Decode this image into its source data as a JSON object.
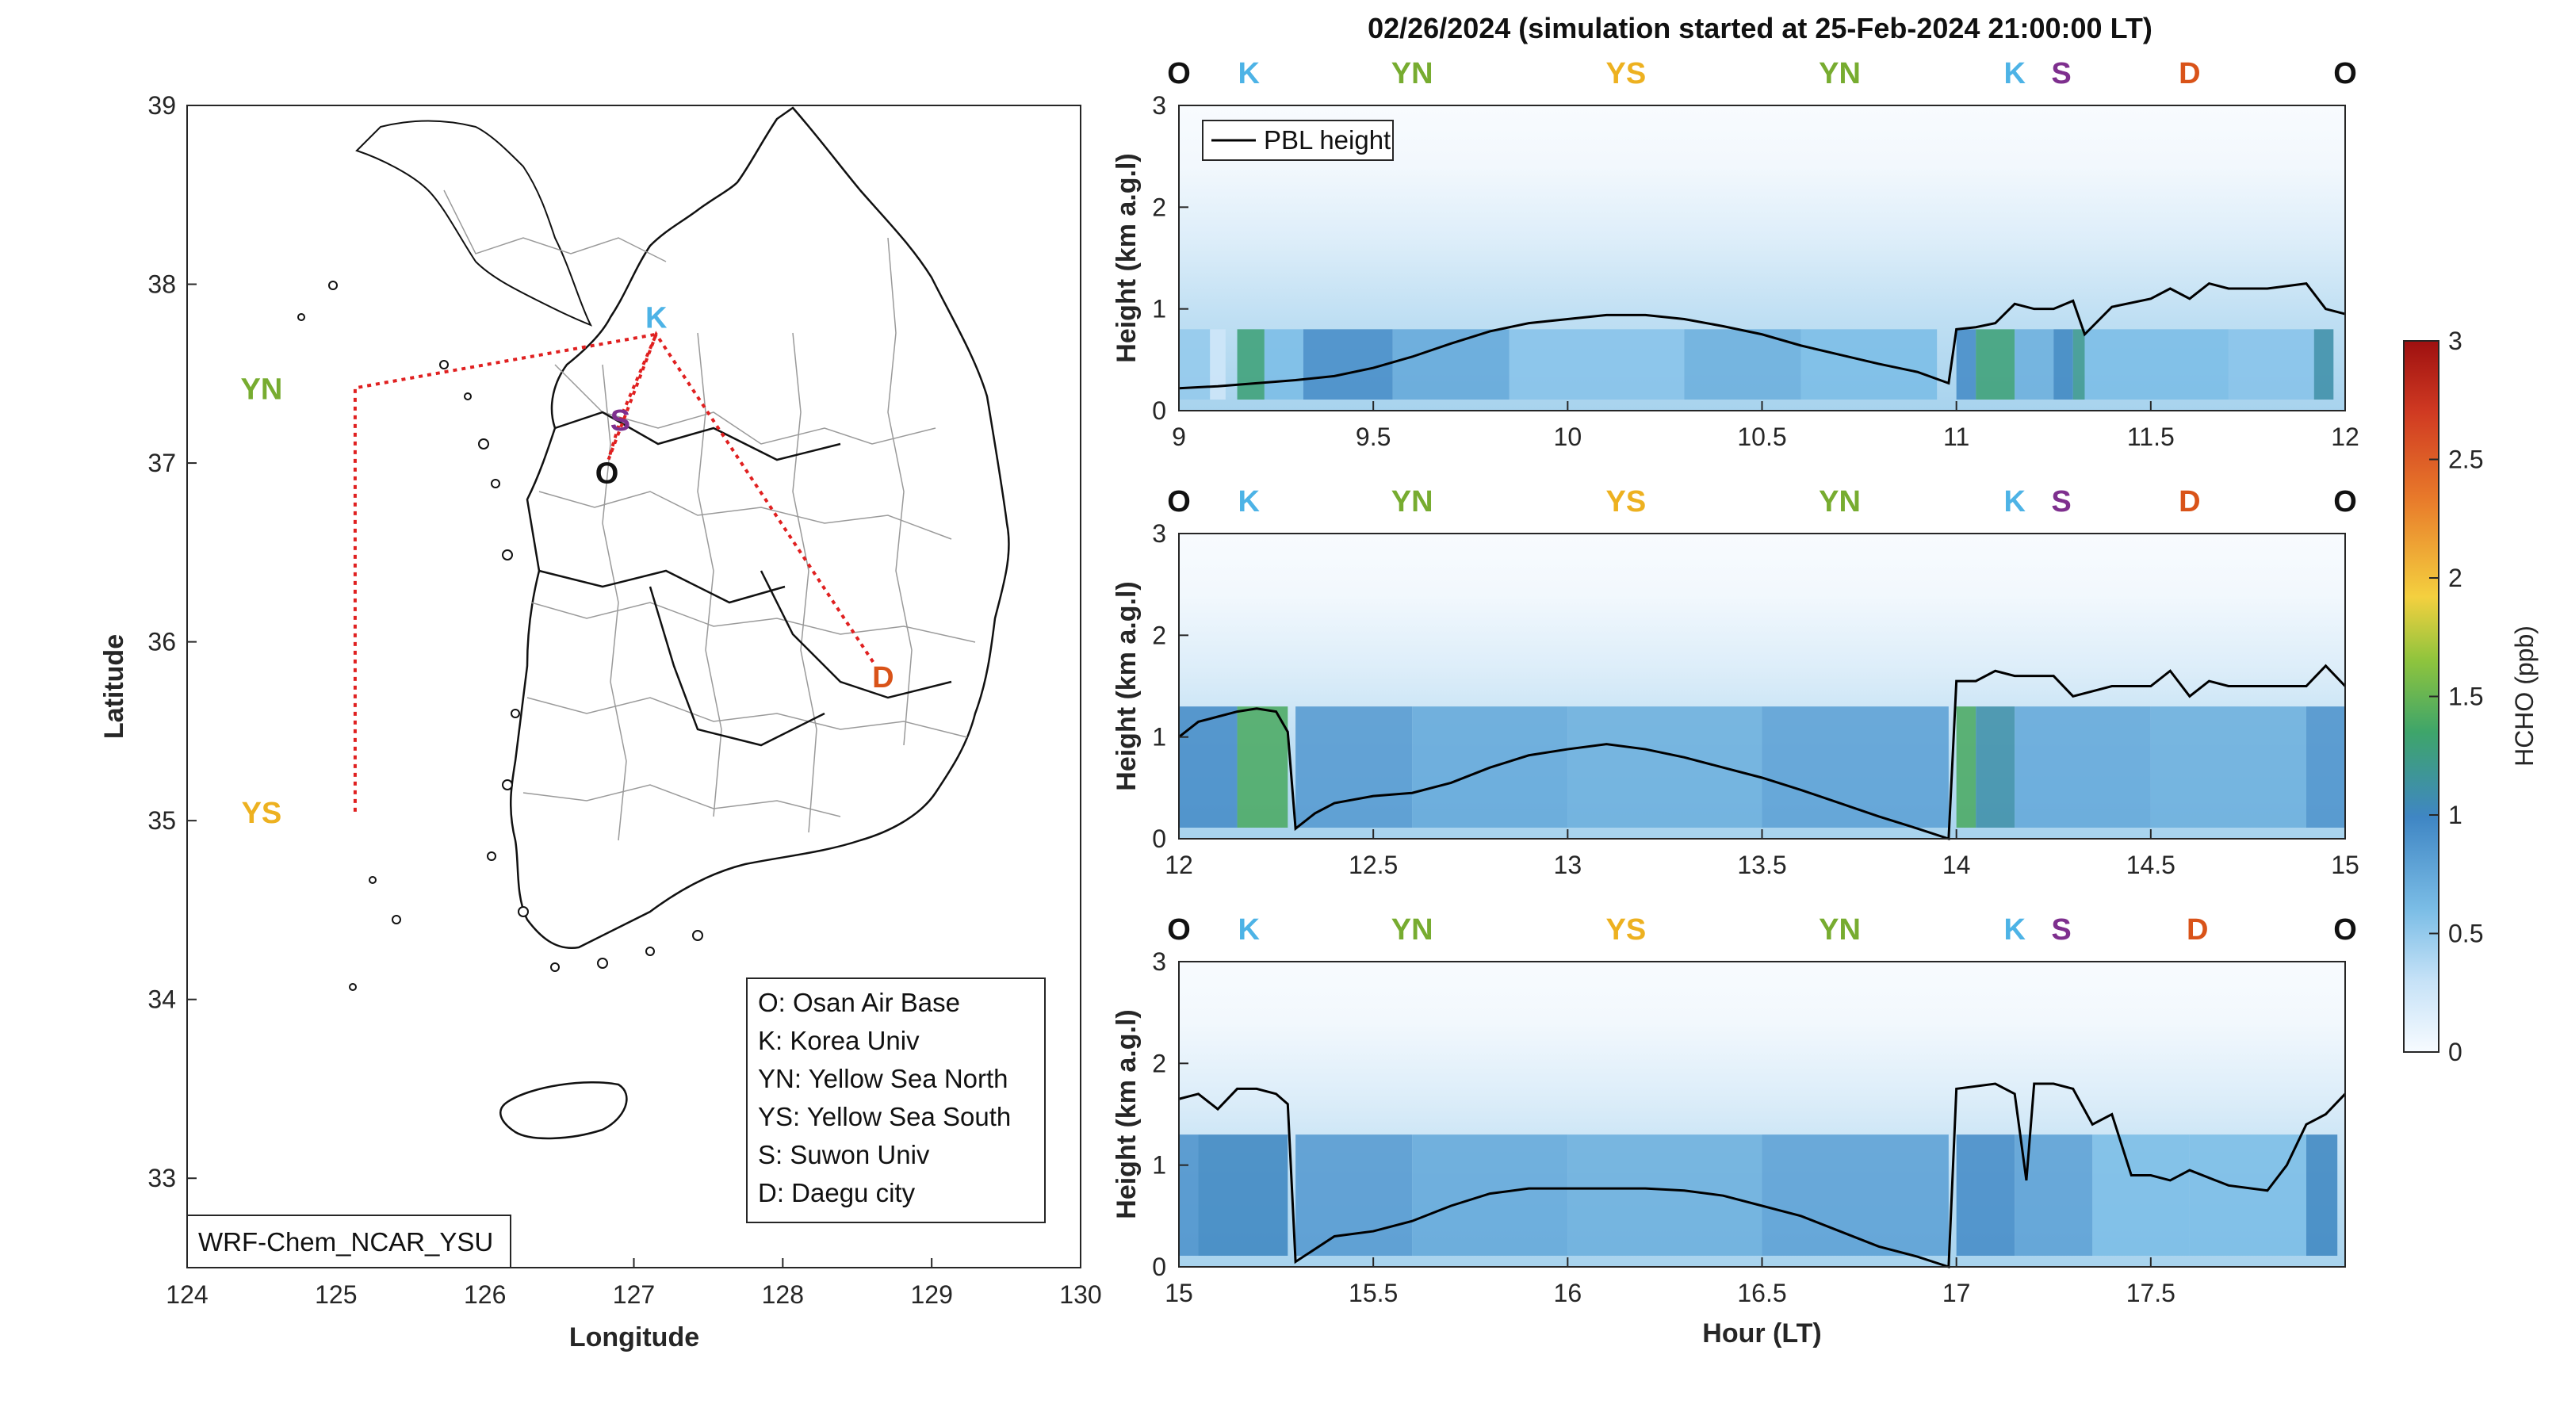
{
  "title": "02/26/2024 (simulation started at 25-Feb-2024 21:00:00 LT)",
  "colors": {
    "O": "#111111",
    "K": "#4db3e6",
    "YN": "#77ac30",
    "YS": "#edb120",
    "S": "#7e2f8e",
    "D": "#d95319",
    "route": "#e02020",
    "pbl": "#000000"
  },
  "map": {
    "xlabel": "Longitude",
    "ylabel": "Latitude",
    "xticks": [
      "124",
      "125",
      "126",
      "127",
      "128",
      "129",
      "130"
    ],
    "yticks": [
      "33",
      "34",
      "35",
      "36",
      "37",
      "38",
      "39"
    ],
    "xlim": [
      124,
      130
    ],
    "ylim": [
      32.5,
      39
    ],
    "model_label": "WRF-Chem_NCAR_YSU",
    "sites": [
      {
        "key": "O",
        "label": "O",
        "lon": 126.83,
        "lat": 37.02
      },
      {
        "key": "K",
        "label": "K",
        "lon": 127.15,
        "lat": 37.72
      },
      {
        "key": "S",
        "label": "S",
        "lon": 126.92,
        "lat": 37.27
      },
      {
        "key": "YN",
        "label": "YN",
        "lon": 124.5,
        "lat": 37.42
      },
      {
        "key": "YS",
        "label": "YS",
        "lon": 124.5,
        "lat": 35.05
      },
      {
        "key": "D",
        "label": "D",
        "lon": 128.62,
        "lat": 35.87
      }
    ],
    "legend": [
      "O: Osan Air Base",
      "K: Korea Univ",
      "YN: Yellow Sea North",
      "YS: Yellow Sea South",
      "S: Suwon Univ",
      "D: Daegu city"
    ]
  },
  "chart_data": [
    {
      "type": "heatmap",
      "xlim": [
        9,
        12
      ],
      "ylim": [
        0,
        3
      ],
      "xticks": [
        "9",
        "9.5",
        "10",
        "10.5",
        "11",
        "11.5",
        "12"
      ],
      "yticks": [
        "0",
        "1",
        "2",
        "3"
      ],
      "ylabel": "Height (km a.g.l)",
      "legend": "PBL height",
      "site_markers": [
        {
          "key": "O",
          "x": 9.0
        },
        {
          "key": "K",
          "x": 9.18
        },
        {
          "key": "YN",
          "x": 9.6
        },
        {
          "key": "YS",
          "x": 10.15
        },
        {
          "key": "YN",
          "x": 10.7
        },
        {
          "key": "K",
          "x": 11.15
        },
        {
          "key": "S",
          "x": 11.27
        },
        {
          "key": "D",
          "x": 11.6
        },
        {
          "key": "O",
          "x": 12.0
        }
      ],
      "pbl": {
        "x": [
          9.0,
          9.1,
          9.2,
          9.3,
          9.4,
          9.5,
          9.6,
          9.7,
          9.8,
          9.9,
          10.0,
          10.1,
          10.2,
          10.3,
          10.4,
          10.5,
          10.6,
          10.7,
          10.8,
          10.9,
          10.98,
          11.0,
          11.05,
          11.1,
          11.15,
          11.2,
          11.25,
          11.3,
          11.33,
          11.4,
          11.5,
          11.55,
          11.6,
          11.65,
          11.7,
          11.8,
          11.9,
          11.95,
          12.0
        ],
        "y": [
          0.22,
          0.24,
          0.27,
          0.3,
          0.34,
          0.42,
          0.53,
          0.66,
          0.78,
          0.86,
          0.9,
          0.94,
          0.94,
          0.9,
          0.83,
          0.75,
          0.64,
          0.55,
          0.46,
          0.38,
          0.27,
          0.8,
          0.82,
          0.86,
          1.05,
          1.0,
          1.0,
          1.08,
          0.75,
          1.02,
          1.1,
          1.2,
          1.1,
          1.25,
          1.2,
          1.2,
          1.25,
          1.0,
          0.95
        ]
      },
      "bands": [
        {
          "x": [
            9.0,
            9.08
          ],
          "v": 0.5
        },
        {
          "x": [
            9.08,
            9.12
          ],
          "v": 0.25
        },
        {
          "x": [
            9.15,
            9.22
          ],
          "v": 1.3
        },
        {
          "x": [
            9.22,
            9.32
          ],
          "v": 0.6
        },
        {
          "x": [
            9.32,
            9.55
          ],
          "v": 0.95
        },
        {
          "x": [
            9.55,
            9.85
          ],
          "v": 0.75
        },
        {
          "x": [
            9.85,
            10.3
          ],
          "v": 0.55
        },
        {
          "x": [
            10.3,
            10.6
          ],
          "v": 0.7
        },
        {
          "x": [
            10.6,
            10.95
          ],
          "v": 0.6
        },
        {
          "x": [
            11.0,
            11.05
          ],
          "v": 0.95
        },
        {
          "x": [
            11.05,
            11.15
          ],
          "v": 1.3
        },
        {
          "x": [
            11.15,
            11.25
          ],
          "v": 0.7
        },
        {
          "x": [
            11.25,
            11.3
          ],
          "v": 1.0
        },
        {
          "x": [
            11.3,
            11.33
          ],
          "v": 1.2
        },
        {
          "x": [
            11.33,
            11.7
          ],
          "v": 0.6
        },
        {
          "x": [
            11.7,
            11.92
          ],
          "v": 0.55
        },
        {
          "x": [
            11.92,
            11.97
          ],
          "v": 1.1
        }
      ]
    },
    {
      "type": "heatmap",
      "xlim": [
        12,
        15
      ],
      "ylim": [
        0,
        3
      ],
      "xticks": [
        "12",
        "12.5",
        "13",
        "13.5",
        "14",
        "14.5",
        "15"
      ],
      "yticks": [
        "0",
        "1",
        "2",
        "3"
      ],
      "ylabel": "Height (km a.g.l)",
      "site_markers": [
        {
          "key": "O",
          "x": 12.0
        },
        {
          "key": "K",
          "x": 12.18
        },
        {
          "key": "YN",
          "x": 12.6
        },
        {
          "key": "YS",
          "x": 13.15
        },
        {
          "key": "YN",
          "x": 13.7
        },
        {
          "key": "K",
          "x": 14.15
        },
        {
          "key": "S",
          "x": 14.27
        },
        {
          "key": "D",
          "x": 14.6
        },
        {
          "key": "O",
          "x": 15.0
        }
      ],
      "pbl": {
        "x": [
          12.0,
          12.05,
          12.1,
          12.15,
          12.2,
          12.25,
          12.28,
          12.3,
          12.35,
          12.4,
          12.5,
          12.6,
          12.7,
          12.8,
          12.9,
          13.0,
          13.1,
          13.2,
          13.3,
          13.4,
          13.5,
          13.6,
          13.7,
          13.8,
          13.9,
          13.98,
          14.0,
          14.05,
          14.1,
          14.15,
          14.2,
          14.25,
          14.3,
          14.35,
          14.4,
          14.5,
          14.55,
          14.6,
          14.65,
          14.7,
          14.8,
          14.9,
          14.95,
          15.0
        ],
        "y": [
          1.0,
          1.15,
          1.2,
          1.25,
          1.28,
          1.25,
          1.05,
          0.1,
          0.25,
          0.35,
          0.42,
          0.45,
          0.55,
          0.7,
          0.82,
          0.88,
          0.93,
          0.88,
          0.8,
          0.7,
          0.6,
          0.48,
          0.35,
          0.22,
          0.1,
          0.0,
          1.55,
          1.55,
          1.65,
          1.6,
          1.6,
          1.6,
          1.4,
          1.45,
          1.5,
          1.5,
          1.65,
          1.4,
          1.55,
          1.5,
          1.5,
          1.5,
          1.7,
          1.5
        ]
      },
      "bands": [
        {
          "x": [
            12.0,
            12.15
          ],
          "v": 0.95
        },
        {
          "x": [
            12.15,
            12.28
          ],
          "v": 1.4
        },
        {
          "x": [
            12.3,
            12.6
          ],
          "v": 0.85
        },
        {
          "x": [
            12.6,
            13.0
          ],
          "v": 0.75
        },
        {
          "x": [
            13.0,
            13.5
          ],
          "v": 0.7
        },
        {
          "x": [
            13.5,
            13.98
          ],
          "v": 0.8
        },
        {
          "x": [
            14.0,
            14.05
          ],
          "v": 1.4
        },
        {
          "x": [
            14.05,
            14.15
          ],
          "v": 1.1
        },
        {
          "x": [
            14.15,
            14.5
          ],
          "v": 0.75
        },
        {
          "x": [
            14.5,
            14.9
          ],
          "v": 0.7
        },
        {
          "x": [
            14.9,
            15.0
          ],
          "v": 0.9
        }
      ]
    },
    {
      "type": "heatmap",
      "xlim": [
        15,
        18
      ],
      "ylim": [
        0,
        3
      ],
      "xticks": [
        "15",
        "15.5",
        "16",
        "16.5",
        "17",
        "17.5"
      ],
      "yticks": [
        "0",
        "1",
        "2",
        "3"
      ],
      "xlabel": "Hour (LT)",
      "ylabel": "Height (km a.g.l)",
      "site_markers": [
        {
          "key": "O",
          "x": 15.0
        },
        {
          "key": "K",
          "x": 15.18
        },
        {
          "key": "YN",
          "x": 15.6
        },
        {
          "key": "YS",
          "x": 16.15
        },
        {
          "key": "YN",
          "x": 16.7
        },
        {
          "key": "K",
          "x": 17.15
        },
        {
          "key": "S",
          "x": 17.27
        },
        {
          "key": "D",
          "x": 17.62
        },
        {
          "key": "O",
          "x": 18.0
        }
      ],
      "pbl": {
        "x": [
          15.0,
          15.05,
          15.1,
          15.15,
          15.2,
          15.25,
          15.28,
          15.3,
          15.4,
          15.5,
          15.6,
          15.7,
          15.8,
          15.9,
          16.0,
          16.1,
          16.2,
          16.3,
          16.4,
          16.5,
          16.6,
          16.7,
          16.8,
          16.9,
          16.98,
          17.0,
          17.1,
          17.15,
          17.18,
          17.2,
          17.25,
          17.3,
          17.35,
          17.4,
          17.45,
          17.5,
          17.55,
          17.6,
          17.7,
          17.8,
          17.85,
          17.9,
          17.95,
          18.0
        ],
        "y": [
          1.65,
          1.7,
          1.55,
          1.75,
          1.75,
          1.7,
          1.6,
          0.05,
          0.3,
          0.35,
          0.45,
          0.6,
          0.72,
          0.77,
          0.77,
          0.77,
          0.77,
          0.75,
          0.7,
          0.6,
          0.5,
          0.35,
          0.2,
          0.1,
          0.0,
          1.75,
          1.8,
          1.7,
          0.85,
          1.8,
          1.8,
          1.75,
          1.4,
          1.5,
          0.9,
          0.9,
          0.85,
          0.95,
          0.8,
          0.75,
          1.0,
          1.4,
          1.5,
          1.7
        ]
      },
      "bands": [
        {
          "x": [
            15.0,
            15.05
          ],
          "v": 0.9
        },
        {
          "x": [
            15.05,
            15.28
          ],
          "v": 1.0
        },
        {
          "x": [
            15.3,
            15.6
          ],
          "v": 0.85
        },
        {
          "x": [
            15.6,
            16.0
          ],
          "v": 0.75
        },
        {
          "x": [
            16.0,
            16.5
          ],
          "v": 0.7
        },
        {
          "x": [
            16.5,
            16.98
          ],
          "v": 0.8
        },
        {
          "x": [
            17.0,
            17.15
          ],
          "v": 0.95
        },
        {
          "x": [
            17.15,
            17.35
          ],
          "v": 0.8
        },
        {
          "x": [
            17.35,
            17.6
          ],
          "v": 0.6
        },
        {
          "x": [
            17.6,
            17.9
          ],
          "v": 0.6
        },
        {
          "x": [
            17.9,
            17.98
          ],
          "v": 1.0
        }
      ]
    }
  ],
  "colorbar": {
    "label": "HCHO (ppb)",
    "ticks": [
      "0",
      "0.5",
      "1",
      "1.5",
      "2",
      "2.5",
      "3"
    ],
    "clim": [
      0,
      3
    ]
  }
}
